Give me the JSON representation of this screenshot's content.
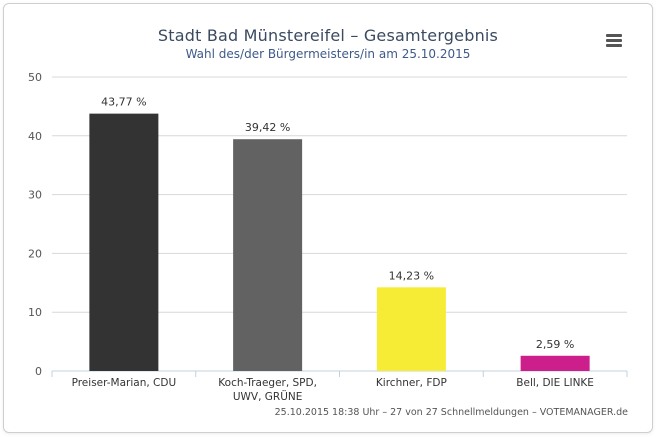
{
  "chart_data": {
    "type": "bar",
    "title": "Stadt Bad Münstereifel – Gesamtergebnis",
    "subtitle": "Wahl des/der Bürgermeisters/in am 25.10.2015",
    "categories": [
      "Preiser-Marian, CDU",
      "Koch-Traeger, SPD, UWV, GRÜNE",
      "Kirchner, FDP",
      "Bell, DIE LINKE"
    ],
    "category_lines": [
      [
        "Preiser-Marian, CDU"
      ],
      [
        "Koch-Traeger, SPD,",
        "UWV, GRÜNE"
      ],
      [
        "Kirchner, FDP"
      ],
      [
        "Bell, DIE LINKE"
      ]
    ],
    "values": [
      43.77,
      39.42,
      14.23,
      2.59
    ],
    "data_labels": [
      "43,77 %",
      "39,42 %",
      "14,23 %",
      "2,59 %"
    ],
    "colors": [
      "#333333",
      "#626262",
      "#f6ec35",
      "#cc1f8c"
    ],
    "ylim": [
      0,
      50
    ],
    "yticks": [
      0,
      10,
      20,
      30,
      40,
      50
    ],
    "grid": true,
    "legend": false
  },
  "credits": "25.10.2015 18:38 Uhr – 27 von 27 Schnellmeldungen – VOTEMANAGER.de",
  "menu_icon": "hamburger-menu-icon"
}
